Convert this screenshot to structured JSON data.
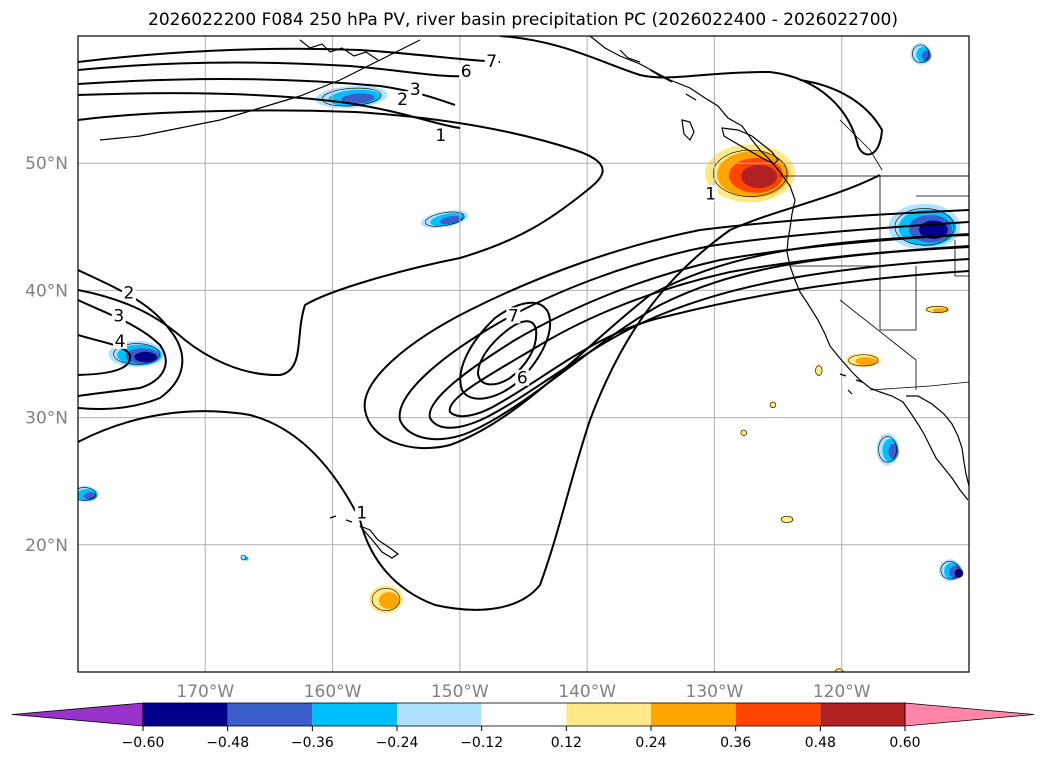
{
  "chart_data": {
    "type": "contour_map",
    "title": "2026022200 F084 250 hPa PV, river basin precipitation PC (2026022400 - 2026022700)",
    "map": {
      "lon_range": [
        -180,
        -110
      ],
      "lat_range": [
        10,
        60
      ],
      "lat_ticks": [
        {
          "value": 50,
          "label": "50°N"
        },
        {
          "value": 40,
          "label": "40°N"
        },
        {
          "value": 30,
          "label": "30°N"
        },
        {
          "value": 20,
          "label": "20°N"
        }
      ],
      "lon_ticks": [
        {
          "value": -170,
          "label": "170°W"
        },
        {
          "value": -160,
          "label": "160°W"
        },
        {
          "value": -150,
          "label": "150°W"
        },
        {
          "value": -140,
          "label": "140°W"
        },
        {
          "value": -130,
          "label": "130°W"
        },
        {
          "value": -120,
          "label": "120°W"
        }
      ],
      "grid": true
    },
    "pv_contour_labels": [
      {
        "text": "7",
        "lon": -147.5,
        "lat": 57.8
      },
      {
        "text": "6",
        "lon": -149.5,
        "lat": 57.0
      },
      {
        "text": "3",
        "lon": -153.5,
        "lat": 55.6
      },
      {
        "text": "2",
        "lon": -154.5,
        "lat": 54.8
      },
      {
        "text": "1",
        "lon": -151.5,
        "lat": 52.0
      },
      {
        "text": "2",
        "lon": -176.0,
        "lat": 39.6
      },
      {
        "text": "3",
        "lon": -176.8,
        "lat": 37.8
      },
      {
        "text": "4",
        "lon": -176.7,
        "lat": 35.8
      },
      {
        "text": "7",
        "lon": -145.8,
        "lat": 37.8
      },
      {
        "text": "6",
        "lon": -145.1,
        "lat": 32.9
      },
      {
        "text": "1",
        "lon": -157.7,
        "lat": 22.3
      },
      {
        "text": "1",
        "lon": -130.3,
        "lat": 47.4
      }
    ],
    "colorbar": {
      "levels": [
        -0.72,
        -0.6,
        -0.48,
        -0.36,
        -0.24,
        -0.12,
        0.12,
        0.24,
        0.36,
        0.48,
        0.6,
        0.72
      ],
      "colors": [
        "#9933cc",
        "#00008b",
        "#3a5fcd",
        "#00bfff",
        "#b0e2ff",
        "#ffffff",
        "#ffe88a",
        "#ffa500",
        "#ff4500",
        "#b22222",
        "#ff86a8"
      ],
      "under_color": "#9933cc",
      "over_color": "#ff86a8",
      "extend": "both",
      "tick_labels": [
        "−0.60",
        "−0.48",
        "−0.36",
        "−0.24",
        "−0.12",
        "0.12",
        "0.24",
        "0.36",
        "0.48",
        "0.60"
      ]
    },
    "precip_features": [
      {
        "lon": -158.5,
        "lat": 55.2,
        "kind": "negative",
        "peak": -0.36
      },
      {
        "lon": -151.2,
        "lat": 45.6,
        "kind": "negative",
        "peak": -0.36
      },
      {
        "lon": -175.4,
        "lat": 35.0,
        "kind": "negative",
        "peak": -0.48
      },
      {
        "lon": -179.5,
        "lat": 24.0,
        "kind": "negative",
        "peak": -0.36
      },
      {
        "lon": -167.0,
        "lat": 19.0,
        "kind": "negative",
        "peak": -0.24
      },
      {
        "lon": -113.5,
        "lat": 45.0,
        "kind": "negative",
        "peak": -0.6
      },
      {
        "lon": -113.8,
        "lat": 58.6,
        "kind": "negative",
        "peak": -0.36
      },
      {
        "lon": -116.4,
        "lat": 27.5,
        "kind": "negative",
        "peak": -0.36
      },
      {
        "lon": -111.5,
        "lat": 18.0,
        "kind": "negative",
        "peak": -0.48
      },
      {
        "lon": -127.2,
        "lat": 49.2,
        "kind": "positive",
        "peak": 0.48
      },
      {
        "lon": -155.8,
        "lat": 15.7,
        "kind": "positive",
        "peak": 0.24
      },
      {
        "lon": -118.3,
        "lat": 34.5,
        "kind": "positive",
        "peak": 0.24
      },
      {
        "lon": -112.5,
        "lat": 38.5,
        "kind": "positive",
        "peak": 0.24
      },
      {
        "lon": -121.8,
        "lat": 33.7,
        "kind": "positive",
        "peak": 0.12
      },
      {
        "lon": -125.4,
        "lat": 31.0,
        "kind": "positive",
        "peak": 0.12
      },
      {
        "lon": -127.7,
        "lat": 28.8,
        "kind": "positive",
        "peak": 0.12
      },
      {
        "lon": -124.3,
        "lat": 22.0,
        "kind": "positive",
        "peak": 0.12
      },
      {
        "lon": -120.2,
        "lat": 10.0,
        "kind": "positive",
        "peak": 0.12
      }
    ]
  }
}
